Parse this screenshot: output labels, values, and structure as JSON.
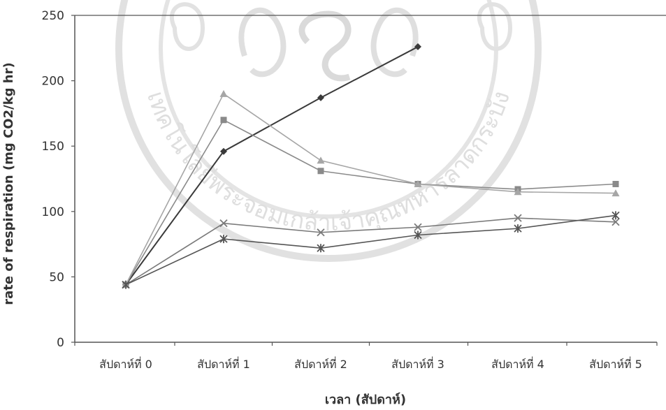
{
  "chart_data": {
    "type": "line",
    "title": "",
    "xlabel": "เวลา (สัปดาห์)",
    "ylabel": "rate of respiration (mg CO2/kg hr)",
    "categories": [
      "สัปดาห์ที่ 0",
      "สัปดาห์ที่ 1",
      "สัปดาห์ที่ 2",
      "สัปดาห์ที่ 3",
      "สัปดาห์ที่ 4",
      "สัปดาห์ที่ 5"
    ],
    "ylim": [
      0,
      250
    ],
    "yticks": [
      0,
      50,
      100,
      150,
      200,
      250
    ],
    "grid": false,
    "legend": "none",
    "series": [
      {
        "marker": "diamond",
        "color": "#3a3a3a",
        "values": [
          44,
          146,
          187,
          226,
          null,
          null
        ]
      },
      {
        "marker": "square",
        "color": "#8a8a8a",
        "values": [
          44,
          170,
          131,
          121,
          117,
          121
        ]
      },
      {
        "marker": "triangle",
        "color": "#a6a6a6",
        "values": [
          44,
          190,
          139,
          121,
          115,
          114
        ]
      },
      {
        "marker": "x",
        "color": "#7a7a7a",
        "values": [
          44,
          91,
          84,
          88,
          95,
          92
        ]
      },
      {
        "marker": "star",
        "color": "#555555",
        "values": [
          44,
          79,
          72,
          82,
          87,
          97
        ]
      }
    ]
  },
  "watermark": {
    "text": "เทคโนโลยีพระจอมเกล้าเจ้าคุณทหารลาดกระบัง"
  }
}
